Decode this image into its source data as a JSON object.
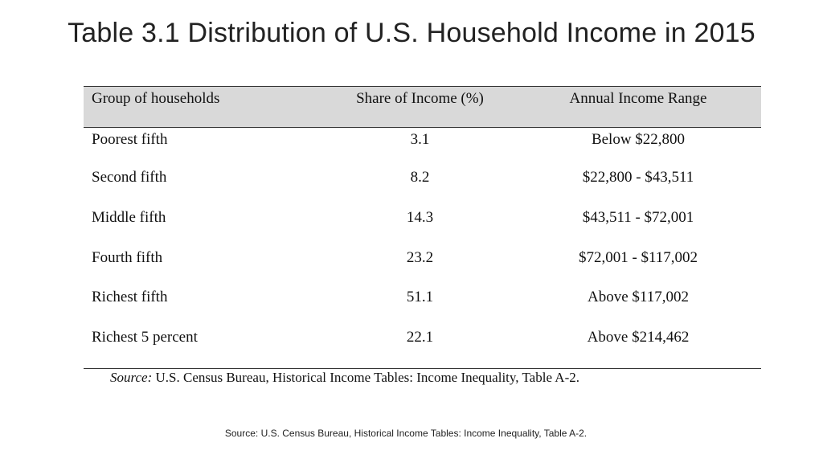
{
  "title": "Table 3.1 Distribution of U.S. Household Income in 2015",
  "table": {
    "headers": [
      "Group of households",
      "Share of Income (%)",
      "Annual Income Range"
    ],
    "rows": [
      {
        "group": "Poorest fifth",
        "share": "3.1",
        "range": "Below $22,800"
      },
      {
        "group": "Second fifth",
        "share": "8.2",
        "range": "$22,800 - $43,511"
      },
      {
        "group": "Middle fifth",
        "share": "14.3",
        "range": "$43,511 - $72,001"
      },
      {
        "group": "Fourth fifth",
        "share": "23.2",
        "range": "$72,001 - $117,002"
      },
      {
        "group": "Richest fifth",
        "share": "51.1",
        "range": "Above $117,002"
      },
      {
        "group": "Richest 5 percent",
        "share": "22.1",
        "range": "Above $214,462"
      }
    ],
    "source_label": "Source:",
    "source_text": " U.S. Census Bureau, Historical Income Tables: Income Inequality, Table A-2."
  },
  "footer": {
    "source": "Source: U.S. Census Bureau, Historical Income Tables: Income Inequality, Table A-2."
  },
  "colors": {
    "header_bg": "#d9d9d9",
    "title_text": "#222222"
  }
}
